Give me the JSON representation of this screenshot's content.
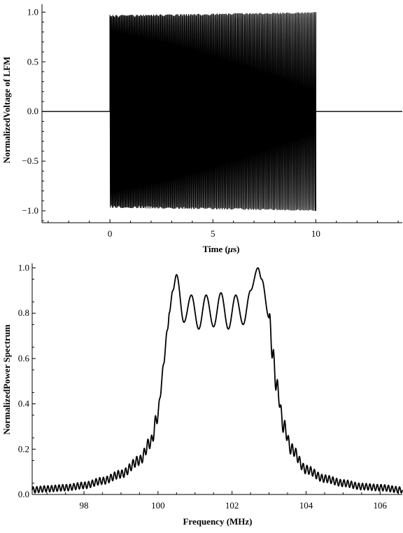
{
  "chart_data": [
    {
      "type": "line",
      "title": "",
      "xlabel": "Time (μs)",
      "ylabel": "NormalizedVoltage of LFM",
      "xlim": [
        -3.3,
        14.2
      ],
      "ylim": [
        -1.12,
        1.08
      ],
      "xticks": [
        0,
        5,
        10
      ],
      "yticks": [
        -1.0,
        -0.5,
        0.0,
        0.5,
        1.0
      ],
      "ytick_labels": [
        "−1.0",
        "−0.5",
        "0.0",
        "0.5",
        "1.0"
      ],
      "grid": false,
      "signal": {
        "description_values": "linear frequency modulated pulse, zero outside pulse",
        "pulse_start": 0,
        "pulse_end": 10,
        "amplitude_start": 0.97,
        "amplitude_end": 1.0,
        "baseline": 0.0
      },
      "series": [
        {
          "values_sample": {
            "x": [
              -3.3,
              0,
              0,
              10,
              10,
              14.2
            ],
            "y": [
              0,
              0,
              0.97,
              1.0,
              0,
              0
            ]
          }
        }
      ]
    },
    {
      "type": "line",
      "title": "",
      "xlabel": "Frequency (MHz)",
      "ylabel": "NormalizedPower Spectrum",
      "xlim": [
        96.6,
        106.6
      ],
      "ylim": [
        0.0,
        1.02
      ],
      "xticks": [
        98,
        100,
        102,
        104,
        106
      ],
      "yticks": [
        0.0,
        0.2,
        0.4,
        0.6,
        0.8,
        1.0
      ],
      "ytick_labels": [
        "0.0",
        "0.2",
        "0.4",
        "0.6",
        "0.8",
        "1.0"
      ],
      "grid": false,
      "series": [
        {
          "x": [
            96.6,
            97.0,
            97.5,
            98.0,
            98.5,
            99.0,
            99.5,
            99.8,
            100.0,
            100.1,
            100.2,
            100.3,
            100.4,
            100.5,
            100.7,
            100.9,
            101.1,
            101.3,
            101.5,
            101.7,
            101.9,
            102.1,
            102.3,
            102.5,
            102.7,
            102.8,
            103.0,
            103.1,
            103.2,
            103.4,
            103.6,
            104.0,
            104.5,
            105.0,
            105.5,
            106.0,
            106.6
          ],
          "y": [
            0.02,
            0.025,
            0.03,
            0.04,
            0.06,
            0.09,
            0.15,
            0.23,
            0.35,
            0.5,
            0.65,
            0.8,
            0.9,
            0.97,
            0.76,
            0.88,
            0.73,
            0.88,
            0.74,
            0.89,
            0.73,
            0.88,
            0.75,
            0.9,
            1.0,
            0.95,
            0.78,
            0.62,
            0.48,
            0.3,
            0.2,
            0.11,
            0.07,
            0.05,
            0.035,
            0.03,
            0.02
          ]
        }
      ]
    }
  ]
}
